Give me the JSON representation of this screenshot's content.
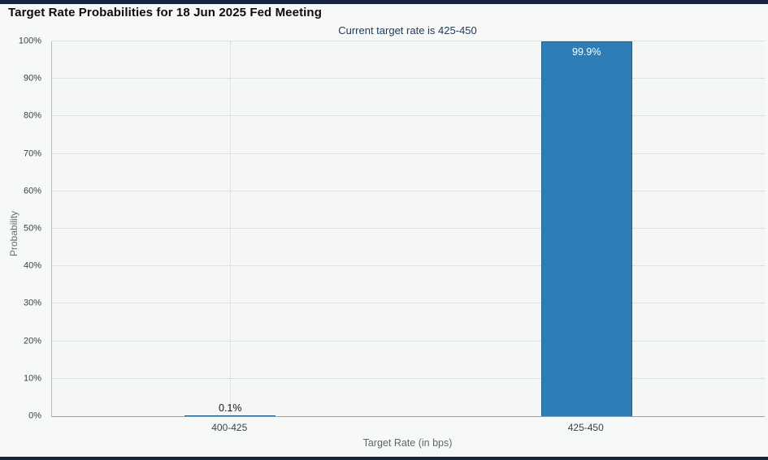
{
  "chart_data": {
    "type": "bar",
    "title": "Target Rate Probabilities for 18 Jun 2025 Fed Meeting",
    "subtitle": "Current target rate is 425-450",
    "xlabel": "Target Rate (in bps)",
    "ylabel": "Probability",
    "categories": [
      "400-425",
      "425-450"
    ],
    "values": [
      0.1,
      99.9
    ],
    "value_labels": [
      "0.1%",
      "99.9%"
    ],
    "ylim": [
      0,
      100
    ],
    "ytick_step": 10,
    "ytick_labels": [
      "0%",
      "10%",
      "20%",
      "30%",
      "40%",
      "50%",
      "60%",
      "70%",
      "80%",
      "90%",
      "100%"
    ],
    "grid": "dotted",
    "legend": "none",
    "colors": {
      "bar": "#2e7db6",
      "bar_border": "#24638f",
      "subtitle_text": "#1e3c64",
      "page_border": "#16253d",
      "background": "#f7f8f8"
    }
  }
}
